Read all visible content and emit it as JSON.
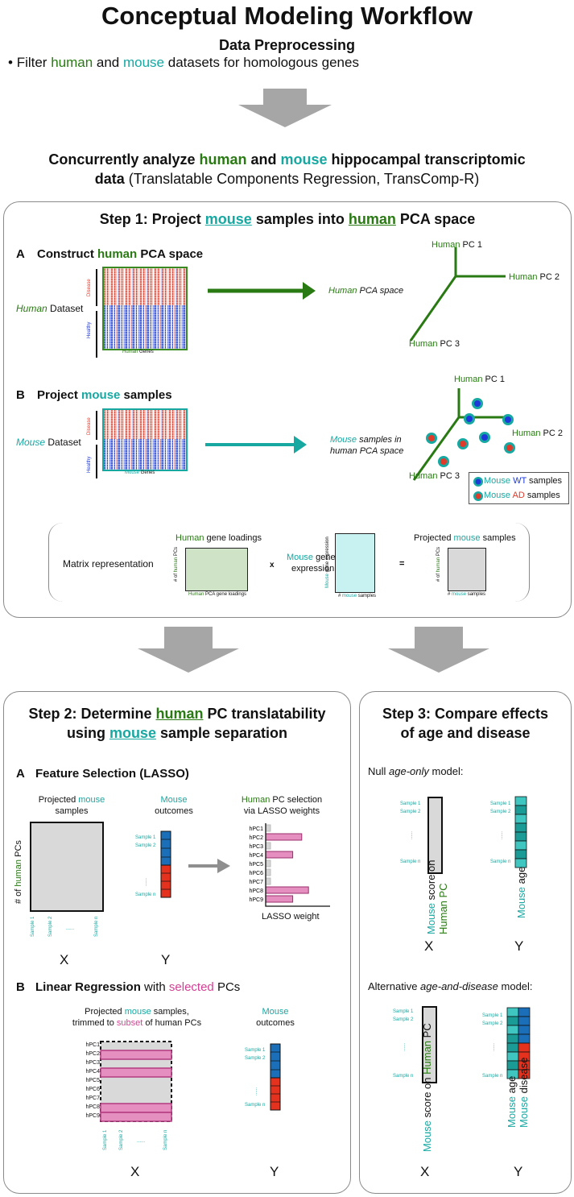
{
  "title": "Conceptual Modeling Workflow",
  "preprocess": {
    "heading": "Data Preprocessing",
    "bullet": "•",
    "line_parts": [
      "Filter ",
      "human",
      " and ",
      "mouse",
      " datasets for homologous genes"
    ]
  },
  "concurrent": {
    "line1_parts": [
      "Concurrently analyze ",
      "human",
      " and ",
      "mouse",
      " hippocampal transcriptomic"
    ],
    "line2_bold": "data",
    "line2_rest": " (Translatable Components Regression, TransComp-R)"
  },
  "step1": {
    "title_parts": [
      "Step 1: Project ",
      "mouse",
      " samples into ",
      "human",
      " PCA space"
    ],
    "A": {
      "letter": "A",
      "title_parts": [
        "Construct ",
        "human",
        " PCA space"
      ],
      "dataset_parts": [
        "Human",
        " Dataset"
      ],
      "disease": "Disease",
      "healthy": "Healthy",
      "genes_parts": [
        "Human",
        " Genes"
      ],
      "space_parts": [
        "Human",
        " PCA space"
      ],
      "pc1_parts": [
        "Human",
        " PC 1"
      ],
      "pc2_parts": [
        "Human",
        " PC 2"
      ],
      "pc3_parts": [
        "Human",
        " PC 3"
      ]
    },
    "B": {
      "letter": "B",
      "title_parts": [
        "Project ",
        "mouse",
        " samples"
      ],
      "dataset_parts": [
        "Mouse",
        " Dataset"
      ],
      "disease": "Disease",
      "healthy": "Healthy",
      "genes_parts": [
        "Mouse",
        " Genes"
      ],
      "space_line1_parts": [
        "Mouse",
        " samples in"
      ],
      "space_line2": "human PCA space",
      "pc1_parts": [
        "Human",
        " PC 1"
      ],
      "pc2_parts": [
        "Human",
        " PC 2"
      ],
      "pc3_parts": [
        "Human",
        " PC 3"
      ],
      "legend_wt_parts": [
        "Mouse",
        " WT",
        " samples"
      ],
      "legend_ad_parts": [
        "Mouse",
        " AD",
        " samples"
      ]
    },
    "matrix": {
      "label": "Matrix representation",
      "loadings_parts": [
        "Human",
        " gene loadings"
      ],
      "loadings_y_parts": [
        "# of ",
        "human",
        " PCs"
      ],
      "loadings_x_parts": [
        "Human",
        " PCA gene loadings"
      ],
      "times": "x",
      "expr_l1_parts": [
        "Mouse",
        " gene"
      ],
      "expr_l2": "expression",
      "expr_y_parts": [
        "Mouse",
        " gene expression"
      ],
      "expr_x_parts": [
        "# ",
        "mouse",
        " samples"
      ],
      "equals": "=",
      "proj_parts": [
        "Projected ",
        "mouse",
        " samples"
      ],
      "proj_y_parts": [
        "# of ",
        "human",
        " PCs"
      ],
      "proj_x_parts": [
        "# ",
        "mouse",
        " samples"
      ]
    }
  },
  "step2": {
    "title_l1_parts": [
      "Step 2: Determine ",
      "human",
      " PC translatability"
    ],
    "title_l2_parts": [
      "using ",
      "mouse",
      " sample separation"
    ],
    "A": {
      "letter": "A",
      "title": "Feature Selection (LASSO)",
      "proj_l1_parts": [
        "Projected ",
        "mouse"
      ],
      "proj_l2": "samples",
      "out_l1": "Mouse",
      "out_l2": "outcomes",
      "sel_l1_parts": [
        "Human",
        " PC selection"
      ],
      "sel_l2": "via LASSO weights",
      "ylabel_parts": [
        "# of ",
        "human",
        " PCs"
      ],
      "samples": [
        "Sample 1",
        "Sample 2",
        "......",
        "Sample n"
      ],
      "out_samples": [
        "Sample 1",
        "Sample 2",
        "......",
        "Sample n"
      ],
      "x": "X",
      "y": "Y",
      "lasso_xlabel": "LASSO weight"
    },
    "B": {
      "letter": "B",
      "title_parts": [
        "Linear Regression",
        " with ",
        "selected",
        " PCs"
      ],
      "proj_l1_parts": [
        "Projected ",
        "mouse",
        " samples,"
      ],
      "proj_l2_parts": [
        "trimmed to ",
        "subset",
        " of human PCs"
      ],
      "out_l1": "Mouse",
      "out_l2": "outcomes",
      "pcs": [
        "hPC1",
        "hPC2",
        "hPC3",
        "hPC4",
        "hPC5",
        "hPC6",
        "hPC7",
        "hPC8",
        "hPC9"
      ],
      "samples": [
        "Sample 1",
        "Sample 2",
        "......",
        "Sample n"
      ],
      "out_samples": [
        "Sample 1",
        "Sample 2",
        "......",
        "Sample n"
      ],
      "x": "X",
      "y": "Y"
    }
  },
  "step3": {
    "title_l1": "Step 3: Compare effects",
    "title_l2": "of age and disease",
    "null_parts": [
      "Null ",
      "age-only",
      " model:"
    ],
    "alt_parts": [
      "Alternative ",
      "age-and-disease",
      " model:"
    ],
    "samples": [
      "Sample 1",
      "Sample 2",
      "......",
      "Sample n"
    ],
    "score_parts": [
      "Mouse",
      " score on"
    ],
    "score_l2": "Human PC",
    "score_inline_parts": [
      "Mouse",
      " score on ",
      "Human",
      " PC"
    ],
    "age_parts": [
      "Mouse",
      " age"
    ],
    "disease_parts": [
      "Mouse",
      " disease"
    ],
    "x": "X",
    "y": "Y"
  },
  "chart_data": {
    "type": "bar",
    "title": "Human PC selection via LASSO weights",
    "xlabel": "LASSO weight",
    "ylabel": "",
    "categories": [
      "hPC1",
      "hPC2",
      "hPC3",
      "hPC4",
      "hPC5",
      "hPC6",
      "hPC7",
      "hPC8",
      "hPC9"
    ],
    "values": [
      0.1,
      0.8,
      0.1,
      0.6,
      0.1,
      0.1,
      0.1,
      0.95,
      0.6
    ],
    "selected": [
      false,
      true,
      false,
      true,
      false,
      false,
      false,
      true,
      true
    ],
    "colors": {
      "selected": "#e48fbf",
      "unselected": "#d5d5d5"
    }
  },
  "colors": {
    "human": "#2a7a14",
    "mouse": "#17a8a2",
    "select": "#d43f94",
    "wt": "#1d3ad8",
    "ad": "#e03a2a",
    "arrow": "#a6a6a6",
    "matrix_gray": "#d9d9d9",
    "loadings": "#cfe3c6",
    "expression": "#c8f2f2",
    "y_blue": "#1a6fb8",
    "y_red": "#e5321f",
    "age_teal": "#1a9b95",
    "age_light": "#3fc6c0"
  }
}
